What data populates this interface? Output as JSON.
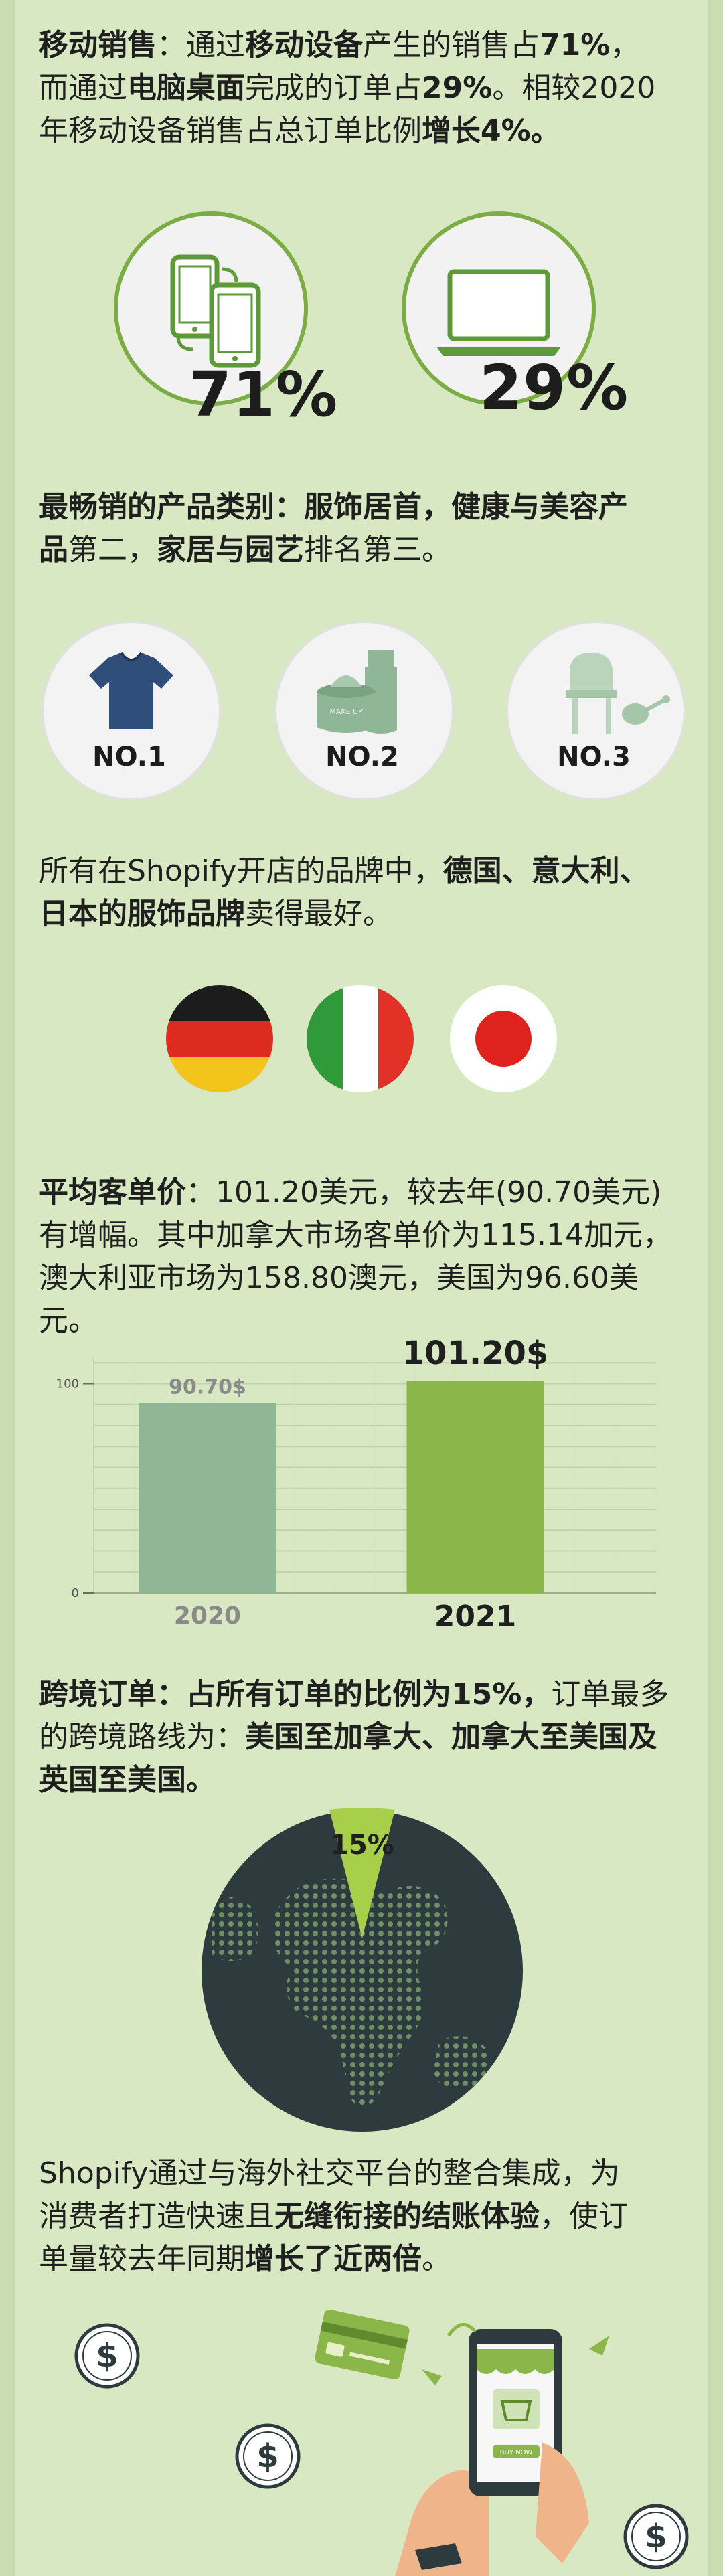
{
  "sections": {
    "mobile": {
      "title": "移动销售",
      "p1": "：通过",
      "b1": "移动设备",
      "p2": "产生的销售占",
      "b2": "71%",
      "p3": "，",
      "p4": "而通过",
      "b3": "电脑桌面",
      "p5": "完成的订单占",
      "b4": "29%",
      "p6": "。相较2020",
      "p7": "年移动设备销售占总订单比例",
      "b5": "增长4%。",
      "mobile_pct": "71%",
      "desktop_pct": "29%"
    },
    "category": {
      "b1": "最畅销的产品类别：服饰居首，健康与美容产",
      "b2": "品",
      "p1": "第二，",
      "b3": "家居与园艺",
      "p2": "排名第三。",
      "rank1": "NO.1",
      "rank2": "NO.2",
      "rank3": "NO.3",
      "makeup_label": "MAKE UP"
    },
    "brands": {
      "p1": "所有在Shopify开店的品牌中，",
      "b1": "德国、意大利、",
      "b2": "日本的服饰品牌",
      "p2": "卖得最好。"
    },
    "aov": {
      "title": "平均客单价",
      "p1": "：101.20美元，较去年(90.70美元)",
      "p2": "有增幅。其中加拿大市场客单价为115.14加元，",
      "p3": "澳大利亚市场为158.80澳元，美国为96.60美元。"
    },
    "cross": {
      "title": "跨境订单",
      "b1": "：占所有订单的比例为15%，",
      "p1": "订单最多",
      "p2": "的跨境路线为：",
      "b2": "美国至加拿大、加拿大至美国及",
      "b3": "英国至美国。",
      "pct": "15%"
    },
    "checkout": {
      "p1": "Shopify通过与海外社交平台的整合集成，为",
      "p2": "消费者打造快速且",
      "b1": "无缝衔接的结账体验",
      "p3": "，使订",
      "p4": "单量较去年同期",
      "b2": "增长了近两倍",
      "p5": "。",
      "buy_label": "BUY NOW"
    }
  },
  "chart_data": {
    "type": "bar",
    "categories": [
      "2020",
      "2021"
    ],
    "values": [
      90.7,
      101.2
    ],
    "value_labels": [
      "90.70$",
      "101.20$"
    ],
    "yticks": [
      0,
      100
    ],
    "ylim": [
      0,
      112
    ],
    "grid": true,
    "colors": [
      "#8fb797",
      "#8bb64a"
    ]
  },
  "colors": {
    "background": "#d8e8c3",
    "accent": "#7cad44",
    "dark": "#2d3a3e"
  },
  "icons": [
    "phones-icon",
    "laptop-icon",
    "tshirt-icon",
    "cosmetics-icon",
    "garden-icon",
    "dollar-icon",
    "credit-card-icon",
    "phone-shop-icon"
  ]
}
